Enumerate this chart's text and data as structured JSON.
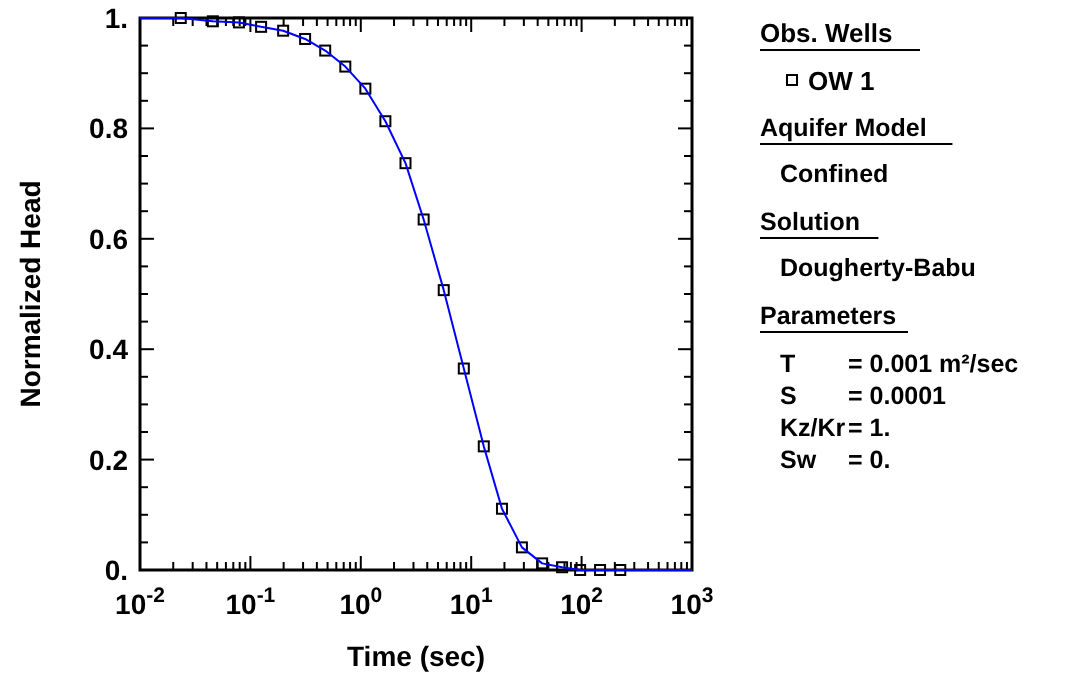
{
  "chart_data": {
    "type": "line",
    "xlabel": "Time (sec)",
    "ylabel": "Normalized Head",
    "log": "x",
    "xlim": [
      0.01,
      1000
    ],
    "ylim": [
      0,
      1
    ],
    "xticks": [
      {
        "value": 0.01,
        "label": "10$^{-2}$"
      },
      {
        "value": 0.02,
        "label": null
      },
      {
        "value": 0.03,
        "label": null
      },
      {
        "value": 0.04,
        "label": null
      },
      {
        "value": 0.05,
        "label": null
      },
      {
        "value": 0.06,
        "label": null
      },
      {
        "value": 0.07,
        "label": null
      },
      {
        "value": 0.08,
        "label": null
      },
      {
        "value": 0.09,
        "label": null
      },
      {
        "value": 0.1,
        "label": "10$^{-1}$"
      },
      {
        "value": 0.2,
        "label": null
      },
      {
        "value": 0.3,
        "label": null
      },
      {
        "value": 0.4,
        "label": null
      },
      {
        "value": 0.5,
        "label": null
      },
      {
        "value": 0.6,
        "label": null
      },
      {
        "value": 0.7,
        "label": null
      },
      {
        "value": 0.8,
        "label": null
      },
      {
        "value": 0.9,
        "label": null
      },
      {
        "value": 1,
        "label": "10$^{0}$"
      },
      {
        "value": 2,
        "label": null
      },
      {
        "value": 3,
        "label": null
      },
      {
        "value": 4,
        "label": null
      },
      {
        "value": 5,
        "label": null
      },
      {
        "value": 6,
        "label": null
      },
      {
        "value": 7,
        "label": null
      },
      {
        "value": 8,
        "label": null
      },
      {
        "value": 9,
        "label": null
      },
      {
        "value": 10,
        "label": "10$^{1}$"
      },
      {
        "value": 20,
        "label": null
      },
      {
        "value": 30,
        "label": null
      },
      {
        "value": 40,
        "label": null
      },
      {
        "value": 50,
        "label": null
      },
      {
        "value": 60,
        "label": null
      },
      {
        "value": 70,
        "label": null
      },
      {
        "value": 80,
        "label": null
      },
      {
        "value": 90,
        "label": null
      },
      {
        "value": 100,
        "label": "10$^{2}$"
      },
      {
        "value": 200,
        "label": null
      },
      {
        "value": 300,
        "label": null
      },
      {
        "value": 400,
        "label": null
      },
      {
        "value": 500,
        "label": null
      },
      {
        "value": 600,
        "label": null
      },
      {
        "value": 700,
        "label": null
      },
      {
        "value": 800,
        "label": null
      },
      {
        "value": 900,
        "label": null
      },
      {
        "value": 1000,
        "label": "10$^{3}$"
      }
    ],
    "yticks": [
      {
        "value": 0,
        "label": "0."
      },
      {
        "value": 0.05,
        "label": null
      },
      {
        "value": 0.1,
        "label": null
      },
      {
        "value": 0.15,
        "label": null
      },
      {
        "value": 0.2,
        "label": "0.2"
      },
      {
        "value": 0.25,
        "label": null
      },
      {
        "value": 0.3,
        "label": null
      },
      {
        "value": 0.35,
        "label": null
      },
      {
        "value": 0.4,
        "label": "0.4"
      },
      {
        "value": 0.45,
        "label": null
      },
      {
        "value": 0.5,
        "label": null
      },
      {
        "value": 0.55,
        "label": null
      },
      {
        "value": 0.6,
        "label": "0.6"
      },
      {
        "value": 0.65,
        "label": null
      },
      {
        "value": 0.7,
        "label": null
      },
      {
        "value": 0.75,
        "label": null
      },
      {
        "value": 0.8,
        "label": "0.8"
      },
      {
        "value": 0.85,
        "label": null
      },
      {
        "value": 0.9,
        "label": null
      },
      {
        "value": 0.95,
        "label": null
      },
      {
        "value": 1,
        "label": "1."
      }
    ],
    "legend": "right",
    "legend_title": "Obs. Wells",
    "series": [
      {
        "name": "OW 1",
        "type": "scatter",
        "marker": "square",
        "color": "#000000",
        "x": [
          0.0234,
          0.0457,
          0.0787,
          0.125,
          0.198,
          0.313,
          0.476,
          0.724,
          1.1,
          1.67,
          2.54,
          3.71,
          5.64,
          8.57,
          13.0,
          19.0,
          28.8,
          43.9,
          66.6,
          97,
          147,
          224
        ],
        "values": [
          1.0,
          0.994,
          0.992,
          0.984,
          0.977,
          0.962,
          0.941,
          0.912,
          0.872,
          0.813,
          0.737,
          0.635,
          0.507,
          0.365,
          0.224,
          0.111,
          0.041,
          0.012,
          0.005,
          0.0,
          0.0,
          0.0
        ]
      },
      {
        "color": "#0000ff",
        "line_style": "solid",
        "marker": "none",
        "x": [
          0.01,
          0.0234,
          0.0457,
          0.0787,
          0.125,
          0.198,
          0.313,
          0.476,
          0.724,
          1.1,
          1.67,
          2.54,
          3.71,
          5.64,
          8.57,
          13.0,
          19.0,
          28.8,
          43.9,
          66.6,
          97,
          147,
          224,
          1000
        ],
        "values": [
          1.0,
          1.0,
          0.994,
          0.992,
          0.984,
          0.977,
          0.962,
          0.941,
          0.912,
          0.872,
          0.813,
          0.737,
          0.635,
          0.507,
          0.365,
          0.224,
          0.111,
          0.041,
          0.012,
          0.005,
          0.0,
          0.0,
          0.0,
          0.0
        ]
      }
    ],
    "annotations": [
      "Aquifer Model",
      "Confined",
      "Solution",
      "Dougherty-Babu",
      "Parameters",
      "T",
      "= 0.001 m²/sec",
      "S",
      "= 0.0001",
      "Kz/Kr",
      "= 1.",
      "Sw",
      "= 0."
    ]
  }
}
